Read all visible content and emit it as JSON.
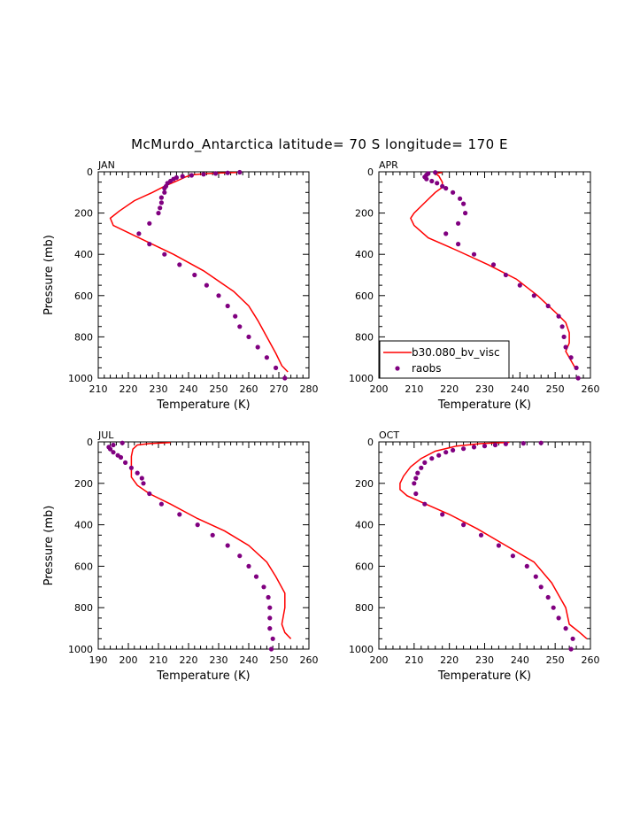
{
  "title": "McMurdo_Antarctica  latitude= 70 S longitude= 170 E",
  "colors": {
    "model": "#ff0000",
    "raobs": "#800080",
    "axes": "#000000"
  },
  "legend": {
    "model_label": "b30.080_bv_visc",
    "obs_label": "raobs",
    "placement": "bottom-left of APR panel"
  },
  "chart_data": [
    {
      "type": "line",
      "panel": "JAN",
      "month": "JAN",
      "xlabel": "Temperature (K)",
      "ylabel": "Pressure (mb)",
      "xlim": [
        210,
        280
      ],
      "ylim": [
        1000,
        0
      ],
      "xticks": [
        "210",
        "220",
        "230",
        "240",
        "250",
        "260",
        "270",
        "280"
      ],
      "yticks": [
        "0",
        "200",
        "400",
        "600",
        "800",
        "1000"
      ],
      "series": [
        {
          "name": "b30.080_bv_visc",
          "style": "line",
          "points": [
            [
              256,
              3
            ],
            [
              250,
              6
            ],
            [
              245,
              10
            ],
            [
              241,
              15
            ],
            [
              239,
              25
            ],
            [
              236,
              45
            ],
            [
              232,
              70
            ],
            [
              228,
              100
            ],
            [
              222,
              140
            ],
            [
              217,
              190
            ],
            [
              214,
              225
            ],
            [
              215,
              260
            ],
            [
              225,
              330
            ],
            [
              235,
              400
            ],
            [
              245,
              480
            ],
            [
              255,
              580
            ],
            [
              260,
              650
            ],
            [
              263,
              720
            ],
            [
              266,
              800
            ],
            [
              269,
              880
            ],
            [
              271,
              940
            ],
            [
              273,
              970
            ]
          ]
        },
        {
          "name": "raobs",
          "style": "markers",
          "points": [
            [
              257,
              2
            ],
            [
              253,
              5
            ],
            [
              249,
              8
            ],
            [
              245,
              12
            ],
            [
              241,
              17
            ],
            [
              238,
              22
            ],
            [
              236,
              28
            ],
            [
              235,
              35
            ],
            [
              234,
              45
            ],
            [
              233,
              55
            ],
            [
              232.5,
              70
            ],
            [
              232,
              80
            ],
            [
              232,
              100
            ],
            [
              231,
              125
            ],
            [
              231,
              150
            ],
            [
              230.5,
              175
            ],
            [
              230,
              200
            ],
            [
              227,
              250
            ],
            [
              223.5,
              300
            ],
            [
              227,
              350
            ],
            [
              232,
              400
            ],
            [
              237,
              450
            ],
            [
              242,
              500
            ],
            [
              246,
              550
            ],
            [
              250,
              600
            ],
            [
              253,
              650
            ],
            [
              255.5,
              700
            ],
            [
              257,
              750
            ],
            [
              260,
              800
            ],
            [
              263,
              850
            ],
            [
              266,
              900
            ],
            [
              269,
              950
            ],
            [
              272,
              1000
            ]
          ]
        }
      ]
    },
    {
      "type": "line",
      "panel": "APR",
      "month": "APR",
      "xlabel": "Temperature (K)",
      "ylabel": "",
      "xlim": [
        200,
        260
      ],
      "ylim": [
        1000,
        0
      ],
      "xticks": [
        "200",
        "210",
        "220",
        "230",
        "240",
        "250",
        "260"
      ],
      "yticks": [
        "0",
        "200",
        "400",
        "600",
        "800",
        "1000"
      ],
      "series": [
        {
          "name": "b30.080_bv_visc",
          "style": "line",
          "points": [
            [
              218,
              3
            ],
            [
              216,
              8
            ],
            [
              217,
              20
            ],
            [
              218,
              50
            ],
            [
              218,
              75
            ],
            [
              216,
              100
            ],
            [
              213,
              150
            ],
            [
              210,
              200
            ],
            [
              209,
              225
            ],
            [
              210,
              260
            ],
            [
              214,
              320
            ],
            [
              222,
              380
            ],
            [
              231,
              450
            ],
            [
              239,
              520
            ],
            [
              245,
              600
            ],
            [
              250,
              680
            ],
            [
              253,
              730
            ],
            [
              254,
              780
            ],
            [
              254,
              830
            ],
            [
              253,
              870
            ],
            [
              255,
              930
            ],
            [
              256,
              960
            ]
          ]
        },
        {
          "name": "raobs",
          "style": "markers",
          "points": [
            [
              216,
              3
            ],
            [
              214,
              8
            ],
            [
              213.5,
              15
            ],
            [
              213,
              25
            ],
            [
              213.5,
              35
            ],
            [
              215,
              45
            ],
            [
              216.5,
              55
            ],
            [
              218,
              70
            ],
            [
              219,
              80
            ],
            [
              221,
              100
            ],
            [
              223,
              130
            ],
            [
              224,
              155
            ],
            [
              224.5,
              200
            ],
            [
              222.5,
              250
            ],
            [
              219,
              300
            ],
            [
              222.5,
              350
            ],
            [
              227,
              400
            ],
            [
              232.5,
              450
            ],
            [
              236,
              500
            ],
            [
              240,
              550
            ],
            [
              244,
              600
            ],
            [
              248,
              650
            ],
            [
              251,
              700
            ],
            [
              252,
              750
            ],
            [
              252.5,
              800
            ],
            [
              253,
              850
            ],
            [
              254.5,
              900
            ],
            [
              256,
              950
            ],
            [
              256.5,
              1000
            ]
          ]
        }
      ]
    },
    {
      "type": "line",
      "panel": "JUL",
      "month": "JUL",
      "xlabel": "Temperature (K)",
      "ylabel": "Pressure (mb)",
      "xlim": [
        190,
        260
      ],
      "ylim": [
        1000,
        0
      ],
      "xticks": [
        "190",
        "200",
        "210",
        "220",
        "230",
        "240",
        "250",
        "260"
      ],
      "yticks": [
        "0",
        "200",
        "400",
        "600",
        "800",
        "1000"
      ],
      "series": [
        {
          "name": "b30.080_bv_visc",
          "style": "line",
          "points": [
            [
              214,
              3
            ],
            [
              207,
              8
            ],
            [
              203,
              15
            ],
            [
              201.5,
              35
            ],
            [
              201,
              70
            ],
            [
              201,
              120
            ],
            [
              201,
              170
            ],
            [
              203,
              210
            ],
            [
              207,
              250
            ],
            [
              214,
              300
            ],
            [
              223,
              370
            ],
            [
              232,
              430
            ],
            [
              240,
              500
            ],
            [
              246,
              580
            ],
            [
              249,
              650
            ],
            [
              252,
              730
            ],
            [
              252,
              800
            ],
            [
              251,
              880
            ],
            [
              252,
              920
            ],
            [
              254,
              950
            ]
          ]
        },
        {
          "name": "raobs",
          "style": "markers",
          "points": [
            [
              198,
              5
            ],
            [
              195,
              15
            ],
            [
              193.5,
              25
            ],
            [
              194,
              35
            ],
            [
              195,
              50
            ],
            [
              196.5,
              65
            ],
            [
              197.5,
              75
            ],
            [
              199,
              100
            ],
            [
              201,
              125
            ],
            [
              203,
              150
            ],
            [
              204.5,
              175
            ],
            [
              205,
              200
            ],
            [
              207,
              250
            ],
            [
              211,
              300
            ],
            [
              217,
              350
            ],
            [
              223,
              400
            ],
            [
              228,
              450
            ],
            [
              233,
              500
            ],
            [
              237,
              550
            ],
            [
              240,
              600
            ],
            [
              242.5,
              650
            ],
            [
              245,
              700
            ],
            [
              246.5,
              750
            ],
            [
              247,
              800
            ],
            [
              247,
              850
            ],
            [
              247,
              900
            ],
            [
              248,
              950
            ],
            [
              247.5,
              1000
            ]
          ]
        }
      ]
    },
    {
      "type": "line",
      "panel": "OCT",
      "month": "OCT",
      "xlabel": "Temperature (K)",
      "ylabel": "",
      "xlim": [
        200,
        260
      ],
      "ylim": [
        1000,
        0
      ],
      "xticks": [
        "200",
        "210",
        "220",
        "230",
        "240",
        "250",
        "260"
      ],
      "yticks": [
        "0",
        "200",
        "400",
        "600",
        "800",
        "1000"
      ],
      "series": [
        {
          "name": "b30.080_bv_visc",
          "style": "line",
          "points": [
            [
              237,
              2
            ],
            [
              229,
              8
            ],
            [
              222,
              20
            ],
            [
              216,
              45
            ],
            [
              212,
              80
            ],
            [
              209,
              120
            ],
            [
              207,
              165
            ],
            [
              206,
              200
            ],
            [
              206,
              230
            ],
            [
              208,
              260
            ],
            [
              212,
              290
            ],
            [
              220,
              350
            ],
            [
              228,
              420
            ],
            [
              236,
              500
            ],
            [
              244,
              580
            ],
            [
              249,
              680
            ],
            [
              253,
              800
            ],
            [
              254,
              880
            ],
            [
              257,
              920
            ],
            [
              259,
              950
            ]
          ]
        },
        {
          "name": "raobs",
          "style": "markers",
          "points": [
            [
              246,
              5
            ],
            [
              241,
              7
            ],
            [
              236,
              10
            ],
            [
              233,
              15
            ],
            [
              230,
              20
            ],
            [
              227,
              25
            ],
            [
              224,
              33
            ],
            [
              221,
              40
            ],
            [
              219,
              50
            ],
            [
              217,
              65
            ],
            [
              215,
              80
            ],
            [
              213,
              100
            ],
            [
              212,
              125
            ],
            [
              211,
              150
            ],
            [
              210.5,
              175
            ],
            [
              210,
              200
            ],
            [
              210.5,
              250
            ],
            [
              213,
              300
            ],
            [
              218,
              350
            ],
            [
              224,
              400
            ],
            [
              229,
              450
            ],
            [
              234,
              500
            ],
            [
              238,
              550
            ],
            [
              242,
              600
            ],
            [
              244.5,
              650
            ],
            [
              246,
              700
            ],
            [
              248,
              750
            ],
            [
              249.5,
              800
            ],
            [
              251,
              850
            ],
            [
              253,
              900
            ],
            [
              255,
              950
            ],
            [
              254.5,
              1000
            ]
          ]
        }
      ]
    }
  ]
}
